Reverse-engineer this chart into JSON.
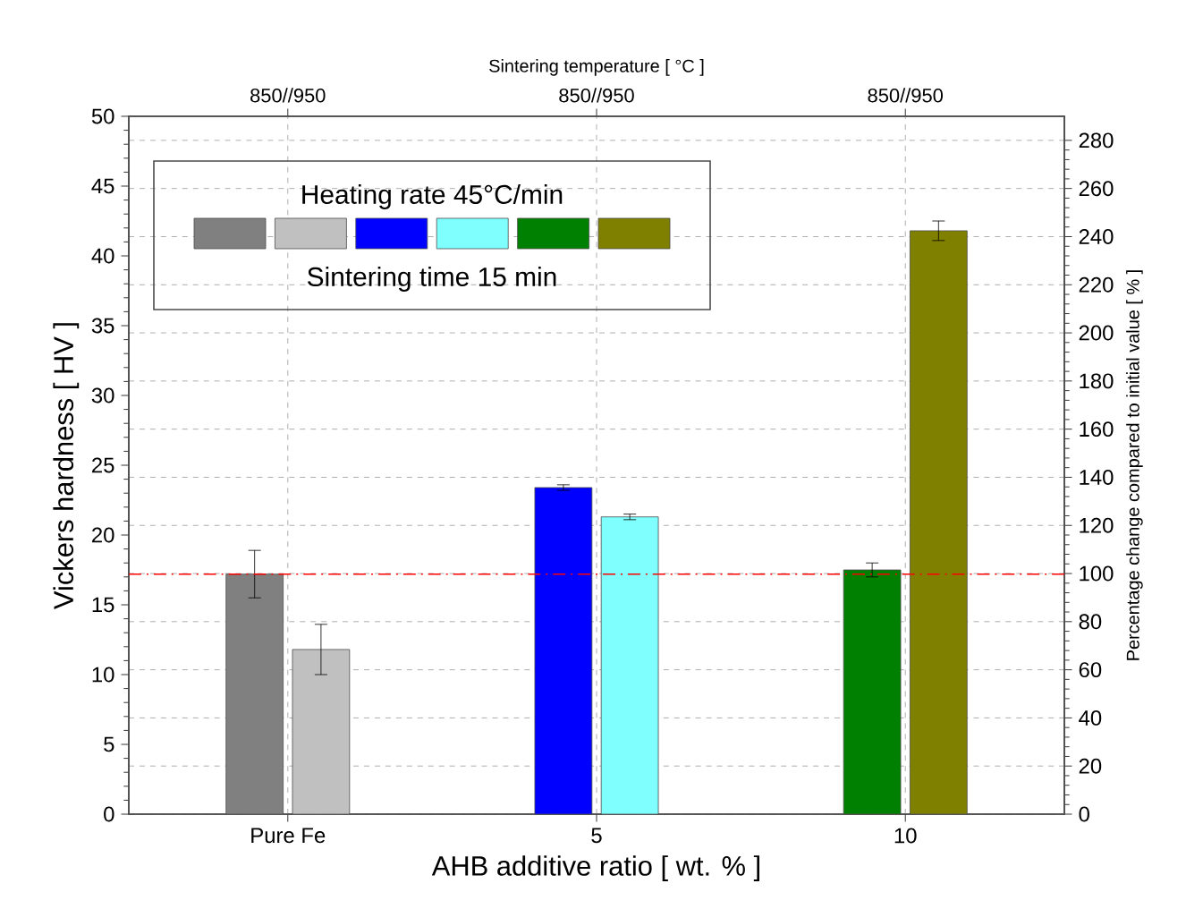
{
  "chart_data": {
    "type": "bar",
    "xlabel": "AHB additive ratio [ wt. % ]",
    "ylabel": "Vickers hardness [ HV ]",
    "y2label": "Percentage change compared to initial value [ % ]",
    "x2label": "Sintering temperature [ °C ]",
    "legend_title": "Heating rate 45°C/min",
    "annotations": [
      "850//950",
      "850//950",
      "850//950",
      "Sintering time 15 min"
    ],
    "categories": [
      "Pure Fe",
      "5",
      "10"
    ],
    "series": [
      {
        "colors": [
          "#808080",
          "#0000ff",
          "#008000"
        ],
        "values": [
          17.2,
          23.4,
          17.5
        ],
        "errors": [
          [
            15.5,
            18.9
          ],
          [
            23.2,
            23.6
          ],
          [
            17.0,
            18.0
          ]
        ]
      },
      {
        "colors": [
          "#c0c0c0",
          "#80ffff",
          "#808000"
        ],
        "values": [
          11.8,
          21.3,
          41.8
        ],
        "errors": [
          [
            10.0,
            13.6
          ],
          [
            21.1,
            21.5
          ],
          [
            41.1,
            42.5
          ]
        ]
      }
    ],
    "ylim": [
      0,
      50
    ],
    "yticks": [
      0,
      5,
      10,
      15,
      20,
      25,
      30,
      35,
      40,
      45,
      50
    ],
    "y2lim": [
      0,
      290
    ],
    "y2ticks": [
      0,
      20,
      40,
      60,
      80,
      100,
      120,
      140,
      160,
      180,
      200,
      220,
      240,
      260,
      280
    ],
    "ref_lines": [
      {
        "axis": "y",
        "value": 17.2,
        "color": "#ff0000",
        "line_style": "dashed"
      }
    ],
    "grid": true
  }
}
